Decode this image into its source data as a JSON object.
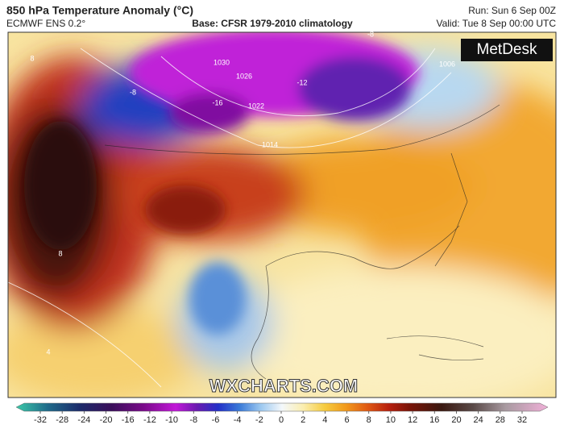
{
  "header": {
    "title": "850 hPa Temperature Anomaly (°C)",
    "model": "ECMWF ENS 0.2°",
    "base": "Base: CFSR 1979-2010 climatology",
    "run": "Run: Sun 6 Sep 00Z",
    "valid": "Valid: Tue 8 Sep 00:00 UTC"
  },
  "logo": "MetDesk",
  "watermark": "WXCHARTS.COM",
  "map": {
    "labels": [
      "-16",
      "-12",
      "-8",
      "-8",
      "1030",
      "1026",
      "1022",
      "1014",
      "1006",
      "8",
      "8",
      "4"
    ]
  },
  "colorbar": {
    "ticks": [
      -32,
      -28,
      -24,
      -20,
      -16,
      -12,
      -10,
      -8,
      -6,
      -4,
      -2,
      0,
      2,
      4,
      6,
      8,
      10,
      12,
      16,
      20,
      24,
      28,
      32
    ]
  }
}
